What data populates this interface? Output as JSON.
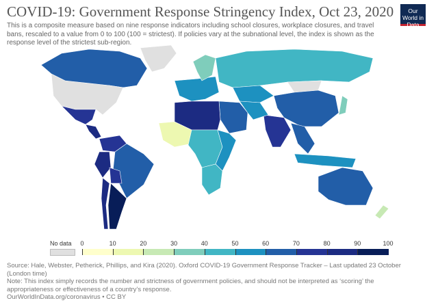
{
  "header": {
    "title": "COVID-19: Government Response Stringency Index, Oct 23, 2020",
    "subtitle": "This is a composite measure based on nine response indicators including school closures, workplace closures, and travel bans, rescaled to a value from 0 to 100 (100 = strictest). If policies vary at the subnational level, the index is shown as the response level of the strictest sub-region.",
    "logo": "Our World in Data"
  },
  "legend": {
    "no_data_label": "No data",
    "no_data_color": "#e0e0e0",
    "ticks": [
      "0",
      "10",
      "20",
      "30",
      "40",
      "50",
      "60",
      "70",
      "80",
      "90",
      "100"
    ],
    "bins": [
      {
        "min": 0,
        "max": 10,
        "color": "#ffffcc"
      },
      {
        "min": 10,
        "max": 20,
        "color": "#edf8b1"
      },
      {
        "min": 20,
        "max": 30,
        "color": "#c7e9b4"
      },
      {
        "min": 30,
        "max": 40,
        "color": "#7fcdbb"
      },
      {
        "min": 40,
        "max": 50,
        "color": "#41b6c4"
      },
      {
        "min": 50,
        "max": 60,
        "color": "#1d91c0"
      },
      {
        "min": 60,
        "max": 70,
        "color": "#225ea8"
      },
      {
        "min": 70,
        "max": 80,
        "color": "#253494"
      },
      {
        "min": 80,
        "max": 90,
        "color": "#1c2b82"
      },
      {
        "min": 90,
        "max": 100,
        "color": "#081d58"
      }
    ]
  },
  "map_regions": [
    {
      "id": "canada",
      "value": 65
    },
    {
      "id": "usa",
      "value": null
    },
    {
      "id": "greenland",
      "value": null
    },
    {
      "id": "mexico",
      "value": 75
    },
    {
      "id": "central-america",
      "value": 80
    },
    {
      "id": "colombia-venezuela",
      "value": 78
    },
    {
      "id": "peru",
      "value": 88
    },
    {
      "id": "brazil",
      "value": 62
    },
    {
      "id": "bolivia",
      "value": 70
    },
    {
      "id": "argentina",
      "value": 92
    },
    {
      "id": "chile",
      "value": 80
    },
    {
      "id": "western-europe",
      "value": 58
    },
    {
      "id": "scandinavia",
      "value": 38
    },
    {
      "id": "russia",
      "value": 45
    },
    {
      "id": "kazakhstan",
      "value": 55
    },
    {
      "id": "mongolia",
      "value": null
    },
    {
      "id": "china",
      "value": 62
    },
    {
      "id": "india",
      "value": 72
    },
    {
      "id": "middle-east",
      "value": 68
    },
    {
      "id": "iran",
      "value": 52
    },
    {
      "id": "north-africa",
      "value": 85
    },
    {
      "id": "west-africa",
      "value": 15
    },
    {
      "id": "central-africa",
      "value": 45
    },
    {
      "id": "east-africa",
      "value": 55
    },
    {
      "id": "southern-africa",
      "value": 40
    },
    {
      "id": "southeast-asia",
      "value": 60
    },
    {
      "id": "indonesia",
      "value": 55
    },
    {
      "id": "japan",
      "value": 35
    },
    {
      "id": "australia",
      "value": 66
    },
    {
      "id": "new-zealand",
      "value": 20
    }
  ],
  "footer": {
    "source": "Source: Hale, Webster, Petherick, Phillips, and Kira (2020). Oxford COVID-19 Government Response Tracker – Last updated 23 October",
    "source_cont": "(London time)",
    "note": "Note: This index simply records the number and strictness of government policies, and should not be interpreted as ‘scoring’ the",
    "note_cont": "appropriateness or effectiveness of a country’s response.",
    "url": "OurWorldInData.org/coronavirus • CC BY"
  }
}
